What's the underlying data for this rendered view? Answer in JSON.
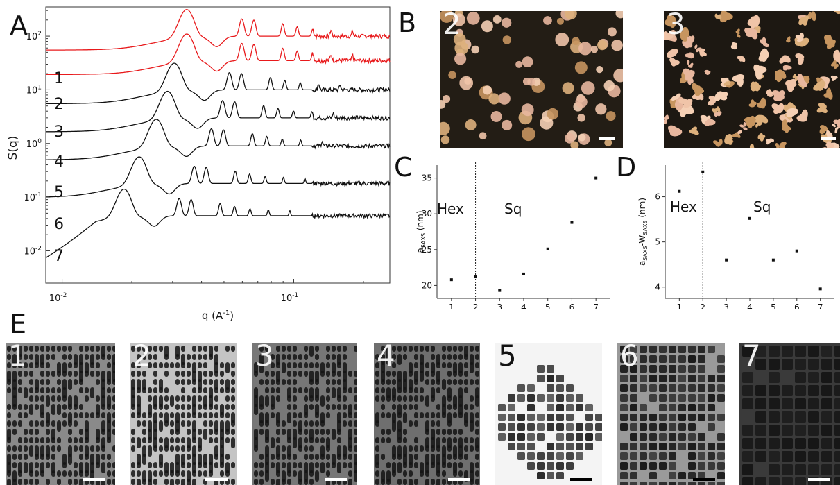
{
  "panel_letters": {
    "a": "A",
    "b": "B",
    "c": "C",
    "d": "D",
    "e": "E"
  },
  "panel_a": {
    "ylabel": "S(q)",
    "xlabel": "q (A",
    "xlabel_sup": "-1",
    "xlabel_end": ")",
    "xticks": [
      {
        "base": "10",
        "exp": "-2",
        "q": 0.01
      },
      {
        "base": "10",
        "exp": "-1",
        "q": 0.1
      }
    ],
    "yticks": [
      {
        "base": "10",
        "exp": "2",
        "v": 100
      },
      {
        "base": "10",
        "exp": "1",
        "v": 10
      },
      {
        "base": "10",
        "exp": "0",
        "v": 1
      },
      {
        "base": "10",
        "exp": "-1",
        "v": 0.1
      },
      {
        "base": "10",
        "exp": "-2",
        "v": 0.01
      }
    ],
    "curve_labels": [
      "1",
      "2",
      "3",
      "4",
      "5",
      "6",
      "7"
    ]
  },
  "panel_b": {
    "images": [
      {
        "label": "2"
      },
      {
        "label": "3"
      }
    ]
  },
  "chart_data": [
    {
      "type": "line",
      "panel": "A",
      "xlabel": "q (A-1)",
      "ylabel": "S(q)",
      "xscale": "log",
      "yscale": "log",
      "xlim": [
        0.0085,
        0.26
      ],
      "ylim": [
        0.0025,
        350
      ],
      "series": [
        {
          "name": "1",
          "color": "#e8191b",
          "offset": 100,
          "q1": 0.0345
        },
        {
          "name": "2",
          "color": "#e8191b",
          "offset": 35,
          "q1": 0.0345
        },
        {
          "name": "3",
          "color": "#111111",
          "offset": 10,
          "q1": 0.0305
        },
        {
          "name": "4",
          "color": "#111111",
          "offset": 3,
          "q1": 0.0285
        },
        {
          "name": "5",
          "color": "#111111",
          "offset": 0.9,
          "q1": 0.0255
        },
        {
          "name": "6",
          "color": "#111111",
          "offset": 0.18,
          "q1": 0.0215
        },
        {
          "name": "7",
          "color": "#111111",
          "offset": 0.045,
          "q1": 0.0185
        }
      ]
    },
    {
      "type": "scatter",
      "panel": "C",
      "xlabel": "sample number",
      "ylabel": "a",
      "ylabel_sub": "SAXS",
      "ylabel_unit": " (nm)",
      "region_labels": [
        "Hex",
        "Sq"
      ],
      "divider_x": 2,
      "xlim": [
        0.4,
        7.6
      ],
      "ylim": [
        18.2,
        36.8
      ],
      "xticks": [
        "1",
        "2",
        "3",
        "4",
        "5",
        "6",
        "7"
      ],
      "yticks": [
        "20",
        "25",
        "30",
        "35"
      ],
      "x": [
        1,
        2,
        3,
        4,
        5,
        6,
        7
      ],
      "y": [
        20.8,
        21.2,
        19.3,
        21.6,
        25.1,
        28.8,
        35.0
      ]
    },
    {
      "type": "scatter",
      "panel": "D",
      "xlabel": "sample number",
      "ylabel": "a",
      "ylabel_sub": "SAXS",
      "ylabel_mid": "-W",
      "ylabel_sub2": "SAXS",
      "ylabel_unit": " (nm)",
      "region_labels": [
        "Hex",
        "Sq"
      ],
      "divider_x": 2,
      "xlim": [
        0.4,
        7.6
      ],
      "ylim": [
        3.75,
        6.7
      ],
      "xticks": [
        "1",
        "2",
        "3",
        "4",
        "5",
        "6",
        "7"
      ],
      "yticks": [
        "4",
        "5",
        "6"
      ],
      "x": [
        1,
        2,
        3,
        4,
        5,
        6,
        7
      ],
      "y": [
        6.12,
        6.55,
        4.6,
        5.52,
        4.6,
        4.8,
        3.96
      ]
    }
  ],
  "panel_e": {
    "images": [
      {
        "label": "1",
        "shape": "rod",
        "bg": "#8a8a8a",
        "label_color": "#ffffff",
        "bar_color": "#ffffff"
      },
      {
        "label": "2",
        "shape": "rod",
        "bg": "#c4c4c4",
        "label_color": "#ffffff",
        "bar_color": "#ffffff"
      },
      {
        "label": "3",
        "shape": "rod",
        "bg": "#777777",
        "label_color": "#ffffff",
        "bar_color": "#ffffff"
      },
      {
        "label": "4",
        "shape": "rod",
        "bg": "#6f6f6f",
        "label_color": "#ffffff",
        "bar_color": "#ffffff"
      },
      {
        "label": "5",
        "shape": "cube",
        "bg": "#f4f4f4",
        "label_color": "#000000",
        "bar_color": "#000000"
      },
      {
        "label": "6",
        "shape": "cube",
        "bg": "#9a9a9a",
        "label_color": "#ffffff",
        "bar_color": "#000000"
      },
      {
        "label": "7",
        "shape": "cube",
        "bg": "#3a3a3a",
        "label_color": "#ffffff",
        "bar_color": "#ffffff"
      }
    ]
  }
}
